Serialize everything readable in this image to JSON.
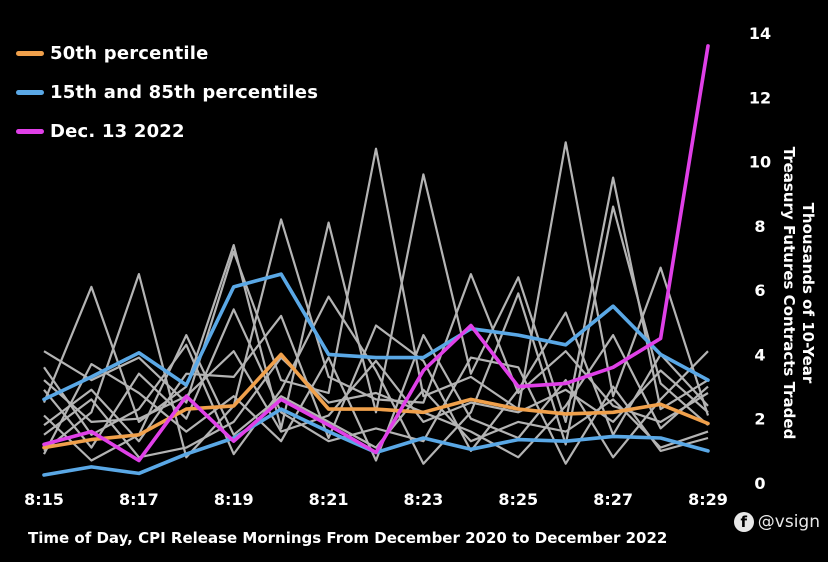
{
  "chart_data": {
    "type": "line",
    "xlabel": "Time of Day, CPI Release Mornings From December 2020 to December 2022",
    "ylabel": "Thousands of 10-Year\nTreasury Futures Contracts Traded",
    "x": [
      "8:15",
      "8:16",
      "8:17",
      "8:18",
      "8:19",
      "8:20",
      "8:21",
      "8:22",
      "8:23",
      "8:24",
      "8:25",
      "8:26",
      "8:27",
      "8:28",
      "8:29"
    ],
    "x_tick_labels": [
      "8:15",
      "8:17",
      "8:19",
      "8:21",
      "8:23",
      "8:25",
      "8:27",
      "8:29"
    ],
    "ylim": [
      0,
      14
    ],
    "y_ticks": [
      "0",
      "2",
      "4",
      "6",
      "8",
      "10",
      "12",
      "14"
    ],
    "y_axis_side": "right",
    "grid": false,
    "legend_position": "top-left",
    "series": [
      {
        "name": "50th percentile",
        "color": "#f0a04b",
        "values": [
          1.1,
          1.35,
          1.5,
          2.3,
          2.4,
          4.0,
          2.3,
          2.3,
          2.2,
          2.6,
          2.3,
          2.15,
          2.2,
          2.45,
          1.85
        ]
      },
      {
        "name": "15th and 85th percentiles",
        "color": "#5aa8e6",
        "values": [
          2.6,
          3.3,
          4.05,
          3.05,
          6.1,
          6.5,
          4.0,
          3.9,
          3.9,
          4.8,
          4.6,
          4.3,
          5.5,
          4.0,
          3.2
        ]
      },
      {
        "name": "15th and 85th percentiles",
        "color": "#5aa8e6",
        "legend": false,
        "values": [
          0.25,
          0.5,
          0.3,
          0.9,
          1.4,
          2.3,
          1.6,
          0.95,
          1.4,
          1.05,
          1.35,
          1.3,
          1.45,
          1.4,
          1.0
        ]
      },
      {
        "name": "Dec. 13 2022",
        "color": "#e040e8",
        "values": [
          1.2,
          1.6,
          0.7,
          2.7,
          1.3,
          2.6,
          1.8,
          0.95,
          3.5,
          4.9,
          3.0,
          3.1,
          3.6,
          4.5,
          13.6
        ]
      }
    ],
    "background_series_color": "#b4b4b4",
    "background_series": [
      [
        4.1,
        3.2,
        3.9,
        2.5,
        7.2,
        3.2,
        2.8,
        10.4,
        2.7,
        3.3,
        2.3,
        10.6,
        2.7,
        6.7,
        2.1
      ],
      [
        2.5,
        6.1,
        1.9,
        3.0,
        7.4,
        1.7,
        8.1,
        2.2,
        9.6,
        3.4,
        6.4,
        1.9,
        9.5,
        2.3,
        3.2
      ],
      [
        1.0,
        2.2,
        6.5,
        0.8,
        2.4,
        8.2,
        3.3,
        2.6,
        2.5,
        6.5,
        2.8,
        4.1,
        2.4,
        1.9,
        2.8
      ],
      [
        3.6,
        1.5,
        2.3,
        4.3,
        0.9,
        2.9,
        5.8,
        3.5,
        0.6,
        2.2,
        5.9,
        1.2,
        8.6,
        3.1,
        1.8
      ],
      [
        1.8,
        2.9,
        1.3,
        3.4,
        3.3,
        5.2,
        1.4,
        4.9,
        3.8,
        1.0,
        2.9,
        5.3,
        1.5,
        4.0,
        2.4
      ],
      [
        0.9,
        3.7,
        2.8,
        1.6,
        2.7,
        1.3,
        3.9,
        0.7,
        4.6,
        2.0,
        1.4,
        3.2,
        0.8,
        2.6,
        4.1
      ],
      [
        2.9,
        1.1,
        3.4,
        2.0,
        5.4,
        2.2,
        1.3,
        1.7,
        1.3,
        3.9,
        3.6,
        0.6,
        3.0,
        1.0,
        1.4
      ],
      [
        1.5,
        2.6,
        0.8,
        1.1,
        1.9,
        3.9,
        2.5,
        2.8,
        2.2,
        1.6,
        0.8,
        2.4,
        4.6,
        1.7,
        3.0
      ],
      [
        3.2,
        1.9,
        2.0,
        2.7,
        4.1,
        1.6,
        2.1,
        3.8,
        1.9,
        2.5,
        2.2,
        2.9,
        1.9,
        3.5,
        2.2
      ],
      [
        2.1,
        0.7,
        1.5,
        4.6,
        1.5,
        2.7,
        1.9,
        1.1,
        2.9,
        1.3,
        1.9,
        1.6,
        2.6,
        1.1,
        1.6
      ]
    ]
  },
  "watermark": {
    "text": "@vsign",
    "icon": "f-circle-icon"
  }
}
